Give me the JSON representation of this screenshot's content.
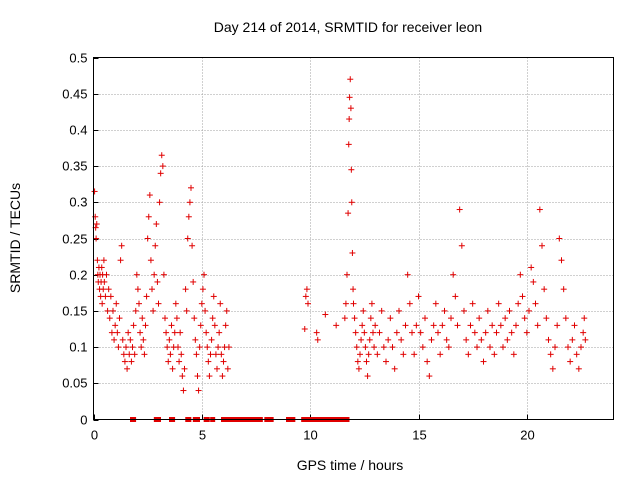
{
  "chart_data": {
    "type": "scatter",
    "title": "Day 214 of 2014, SRMTID for receiver leon",
    "xlabel": "GPS time / hours",
    "ylabel": "SRMTID / TECUs",
    "xlim": [
      0,
      24
    ],
    "ylim": [
      0,
      0.5
    ],
    "xticks": [
      0,
      5,
      10,
      15,
      20
    ],
    "xtick_labels": [
      "0",
      "5",
      "10",
      "15",
      "20"
    ],
    "yticks": [
      0,
      0.05,
      0.1,
      0.15,
      0.2,
      0.25,
      0.3,
      0.35,
      0.4,
      0.45,
      0.5
    ],
    "ytick_labels": [
      "0",
      "0.05",
      "0.1",
      "0.15",
      "0.2",
      "0.25",
      "0.3",
      "0.35",
      "0.4",
      "0.45",
      "0.5"
    ],
    "grid": true,
    "marker": "plus",
    "color": "#e00000",
    "series": [
      {
        "name": "SRMTID",
        "points": [
          [
            0.05,
            0.315
          ],
          [
            0.08,
            0.28
          ],
          [
            0.1,
            0.265
          ],
          [
            0.12,
            0.25
          ],
          [
            0.15,
            0.27
          ],
          [
            0.18,
            0.22
          ],
          [
            0.2,
            0.2
          ],
          [
            0.22,
            0.19
          ],
          [
            0.25,
            0.21
          ],
          [
            0.28,
            0.18
          ],
          [
            0.3,
            0.2
          ],
          [
            0.33,
            0.17
          ],
          [
            0.35,
            0.19
          ],
          [
            0.38,
            0.21
          ],
          [
            0.4,
            0.16
          ],
          [
            0.42,
            0.2
          ],
          [
            0.45,
            0.18
          ],
          [
            0.48,
            0.22
          ],
          [
            0.5,
            0.19
          ],
          [
            0.55,
            0.17
          ],
          [
            0.6,
            0.2
          ],
          [
            0.65,
            0.15
          ],
          [
            0.7,
            0.18
          ],
          [
            0.75,
            0.14
          ],
          [
            0.8,
            0.17
          ],
          [
            0.85,
            0.12
          ],
          [
            0.9,
            0.15
          ],
          [
            0.95,
            0.11
          ],
          [
            1.0,
            0.13
          ],
          [
            1.05,
            0.16
          ],
          [
            1.1,
            0.12
          ],
          [
            1.15,
            0.1
          ],
          [
            1.2,
            0.14
          ],
          [
            1.25,
            0.22
          ],
          [
            1.3,
            0.24
          ],
          [
            1.35,
            0.11
          ],
          [
            1.4,
            0.09
          ],
          [
            1.45,
            0.08
          ],
          [
            1.5,
            0.1
          ],
          [
            1.55,
            0.07
          ],
          [
            1.6,
            0.12
          ],
          [
            1.65,
            0.09
          ],
          [
            1.7,
            0.11
          ],
          [
            1.75,
            0.08
          ],
          [
            1.8,
            0.1
          ],
          [
            1.85,
            0.13
          ],
          [
            1.9,
            0.09
          ],
          [
            1.95,
            0.15
          ],
          [
            2.0,
            0.2
          ],
          [
            2.05,
            0.18
          ],
          [
            2.1,
            0.16
          ],
          [
            2.15,
            0.12
          ],
          [
            2.2,
            0.1
          ],
          [
            2.25,
            0.14
          ],
          [
            2.3,
            0.11
          ],
          [
            2.35,
            0.09
          ],
          [
            2.4,
            0.13
          ],
          [
            2.45,
            0.17
          ],
          [
            2.5,
            0.25
          ],
          [
            2.55,
            0.28
          ],
          [
            2.6,
            0.31
          ],
          [
            2.65,
            0.22
          ],
          [
            2.7,
            0.18
          ],
          [
            2.75,
            0.15
          ],
          [
            2.8,
            0.2
          ],
          [
            2.85,
            0.24
          ],
          [
            2.9,
            0.27
          ],
          [
            2.95,
            0.19
          ],
          [
            3.0,
            0.16
          ],
          [
            3.05,
            0.3
          ],
          [
            3.1,
            0.34
          ],
          [
            3.15,
            0.365
          ],
          [
            3.2,
            0.35
          ],
          [
            3.25,
            0.2
          ],
          [
            3.3,
            0.14
          ],
          [
            3.35,
            0.12
          ],
          [
            3.4,
            0.1
          ],
          [
            3.45,
            0.08
          ],
          [
            3.5,
            0.11
          ],
          [
            3.55,
            0.09
          ],
          [
            3.6,
            0.13
          ],
          [
            3.65,
            0.07
          ],
          [
            3.7,
            0.1
          ],
          [
            3.75,
            0.12
          ],
          [
            3.8,
            0.16
          ],
          [
            3.85,
            0.14
          ],
          [
            3.9,
            0.1
          ],
          [
            3.95,
            0.08
          ],
          [
            4.0,
            0.12
          ],
          [
            4.05,
            0.09
          ],
          [
            4.1,
            0.06
          ],
          [
            4.15,
            0.04
          ],
          [
            4.2,
            0.07
          ],
          [
            4.25,
            0.18
          ],
          [
            4.3,
            0.15
          ],
          [
            4.35,
            0.25
          ],
          [
            4.4,
            0.28
          ],
          [
            4.45,
            0.3
          ],
          [
            4.5,
            0.32
          ],
          [
            4.55,
            0.24
          ],
          [
            4.6,
            0.19
          ],
          [
            4.65,
            0.14
          ],
          [
            4.7,
            0.11
          ],
          [
            4.75,
            0.09
          ],
          [
            4.8,
            0.06
          ],
          [
            4.85,
            0.04
          ],
          [
            4.9,
            0.1
          ],
          [
            4.95,
            0.13
          ],
          [
            5.0,
            0.16
          ],
          [
            5.05,
            0.18
          ],
          [
            5.1,
            0.2
          ],
          [
            5.15,
            0.15
          ],
          [
            5.2,
            0.12
          ],
          [
            5.25,
            0.1
          ],
          [
            5.3,
            0.08
          ],
          [
            5.35,
            0.06
          ],
          [
            5.4,
            0.09
          ],
          [
            5.45,
            0.11
          ],
          [
            5.5,
            0.14
          ],
          [
            5.55,
            0.17
          ],
          [
            5.6,
            0.13
          ],
          [
            5.65,
            0.09
          ],
          [
            5.7,
            0.07
          ],
          [
            5.75,
            0.1
          ],
          [
            5.8,
            0.12
          ],
          [
            5.85,
            0.16
          ],
          [
            5.9,
            0.09
          ],
          [
            5.95,
            0.06
          ],
          [
            6.0,
            0.08
          ],
          [
            6.05,
            0.1
          ],
          [
            6.1,
            0.13
          ],
          [
            6.15,
            0.15
          ],
          [
            6.2,
            0.07
          ],
          [
            6.25,
            0.1
          ],
          [
            9.8,
            0.17
          ],
          [
            9.85,
            0.18
          ],
          [
            9.9,
            0.16
          ],
          [
            9.75,
            0.125
          ],
          [
            10.3,
            0.12
          ],
          [
            10.35,
            0.11
          ],
          [
            10.7,
            0.145
          ],
          [
            11.2,
            0.13
          ],
          [
            11.6,
            0.14
          ],
          [
            11.65,
            0.16
          ],
          [
            11.7,
            0.2
          ],
          [
            11.75,
            0.285
          ],
          [
            11.78,
            0.38
          ],
          [
            11.8,
            0.415
          ],
          [
            11.82,
            0.445
          ],
          [
            11.85,
            0.47
          ],
          [
            11.88,
            0.43
          ],
          [
            11.9,
            0.345
          ],
          [
            11.92,
            0.3
          ],
          [
            11.95,
            0.23
          ],
          [
            11.98,
            0.18
          ],
          [
            12.0,
            0.16
          ],
          [
            12.05,
            0.14
          ],
          [
            12.1,
            0.12
          ],
          [
            12.15,
            0.1
          ],
          [
            12.2,
            0.08
          ],
          [
            12.25,
            0.07
          ],
          [
            12.3,
            0.09
          ],
          [
            12.35,
            0.11
          ],
          [
            12.4,
            0.13
          ],
          [
            12.45,
            0.15
          ],
          [
            12.5,
            0.12
          ],
          [
            12.55,
            0.1
          ],
          [
            12.6,
            0.08
          ],
          [
            12.65,
            0.06
          ],
          [
            12.7,
            0.09
          ],
          [
            12.75,
            0.11
          ],
          [
            12.8,
            0.14
          ],
          [
            12.85,
            0.16
          ],
          [
            12.9,
            0.12
          ],
          [
            12.95,
            0.1
          ],
          [
            13.0,
            0.13
          ],
          [
            13.1,
            0.09
          ],
          [
            13.2,
            0.12
          ],
          [
            13.3,
            0.15
          ],
          [
            13.4,
            0.1
          ],
          [
            13.5,
            0.08
          ],
          [
            13.6,
            0.11
          ],
          [
            13.7,
            0.14
          ],
          [
            13.8,
            0.1
          ],
          [
            13.9,
            0.07
          ],
          [
            14.0,
            0.12
          ],
          [
            14.1,
            0.15
          ],
          [
            14.2,
            0.11
          ],
          [
            14.3,
            0.09
          ],
          [
            14.4,
            0.13
          ],
          [
            14.5,
            0.2
          ],
          [
            14.6,
            0.16
          ],
          [
            14.7,
            0.12
          ],
          [
            14.8,
            0.09
          ],
          [
            14.9,
            0.13
          ],
          [
            15.0,
            0.17
          ],
          [
            15.1,
            0.12
          ],
          [
            15.2,
            0.1
          ],
          [
            15.3,
            0.14
          ],
          [
            15.4,
            0.08
          ],
          [
            15.5,
            0.06
          ],
          [
            15.6,
            0.11
          ],
          [
            15.7,
            0.13
          ],
          [
            15.8,
            0.16
          ],
          [
            15.9,
            0.12
          ],
          [
            16.0,
            0.09
          ],
          [
            16.1,
            0.13
          ],
          [
            16.2,
            0.15
          ],
          [
            16.3,
            0.11
          ],
          [
            16.4,
            0.1
          ],
          [
            16.5,
            0.14
          ],
          [
            16.6,
            0.2
          ],
          [
            16.7,
            0.17
          ],
          [
            16.8,
            0.13
          ],
          [
            16.9,
            0.29
          ],
          [
            17.0,
            0.24
          ],
          [
            17.1,
            0.15
          ],
          [
            17.2,
            0.11
          ],
          [
            17.3,
            0.09
          ],
          [
            17.4,
            0.13
          ],
          [
            17.5,
            0.16
          ],
          [
            17.6,
            0.12
          ],
          [
            17.7,
            0.1
          ],
          [
            17.8,
            0.14
          ],
          [
            17.9,
            0.11
          ],
          [
            18.0,
            0.08
          ],
          [
            18.1,
            0.12
          ],
          [
            18.2,
            0.15
          ],
          [
            18.3,
            0.1
          ],
          [
            18.4,
            0.13
          ],
          [
            18.5,
            0.09
          ],
          [
            18.6,
            0.12
          ],
          [
            18.7,
            0.16
          ],
          [
            18.8,
            0.13
          ],
          [
            18.9,
            0.1
          ],
          [
            19.0,
            0.14
          ],
          [
            19.1,
            0.11
          ],
          [
            19.2,
            0.15
          ],
          [
            19.3,
            0.12
          ],
          [
            19.4,
            0.09
          ],
          [
            19.5,
            0.13
          ],
          [
            19.6,
            0.16
          ],
          [
            19.7,
            0.2
          ],
          [
            19.8,
            0.17
          ],
          [
            19.9,
            0.14
          ],
          [
            20.0,
            0.12
          ],
          [
            20.1,
            0.15
          ],
          [
            20.2,
            0.21
          ],
          [
            20.3,
            0.19
          ],
          [
            20.4,
            0.16
          ],
          [
            20.5,
            0.13
          ],
          [
            20.6,
            0.29
          ],
          [
            20.7,
            0.24
          ],
          [
            20.8,
            0.18
          ],
          [
            20.9,
            0.14
          ],
          [
            21.0,
            0.11
          ],
          [
            21.1,
            0.09
          ],
          [
            21.2,
            0.07
          ],
          [
            21.3,
            0.1
          ],
          [
            21.4,
            0.13
          ],
          [
            21.5,
            0.25
          ],
          [
            21.6,
            0.22
          ],
          [
            21.7,
            0.18
          ],
          [
            21.8,
            0.14
          ],
          [
            21.9,
            0.1
          ],
          [
            22.0,
            0.08
          ],
          [
            22.1,
            0.11
          ],
          [
            22.2,
            0.13
          ],
          [
            22.3,
            0.09
          ],
          [
            22.4,
            0.07
          ],
          [
            22.5,
            0.1
          ],
          [
            22.6,
            0.12
          ],
          [
            22.65,
            0.14
          ],
          [
            22.7,
            0.11
          ]
        ]
      }
    ],
    "zero_points_x": [
      1.8,
      1.85,
      2.9,
      2.95,
      3.0,
      3.6,
      3.65,
      4.35,
      4.4,
      4.7,
      4.75,
      4.8,
      5.2,
      5.25,
      5.5,
      6.0,
      6.1,
      6.15,
      6.2,
      6.25,
      6.3,
      6.35,
      6.4,
      6.45,
      6.5,
      6.55,
      6.6,
      6.65,
      6.7,
      6.75,
      6.8,
      6.85,
      6.9,
      7.0,
      7.1,
      7.2,
      7.3,
      7.4,
      7.5,
      7.6,
      7.7,
      8.0,
      8.1,
      8.2,
      9.0,
      9.1,
      9.2,
      9.7,
      9.8,
      9.9,
      10.0,
      10.1,
      10.3,
      10.5,
      10.6,
      10.7,
      10.8,
      10.9,
      11.0,
      11.1,
      11.2,
      11.3,
      11.4,
      11.5,
      11.6,
      11.7
    ]
  }
}
